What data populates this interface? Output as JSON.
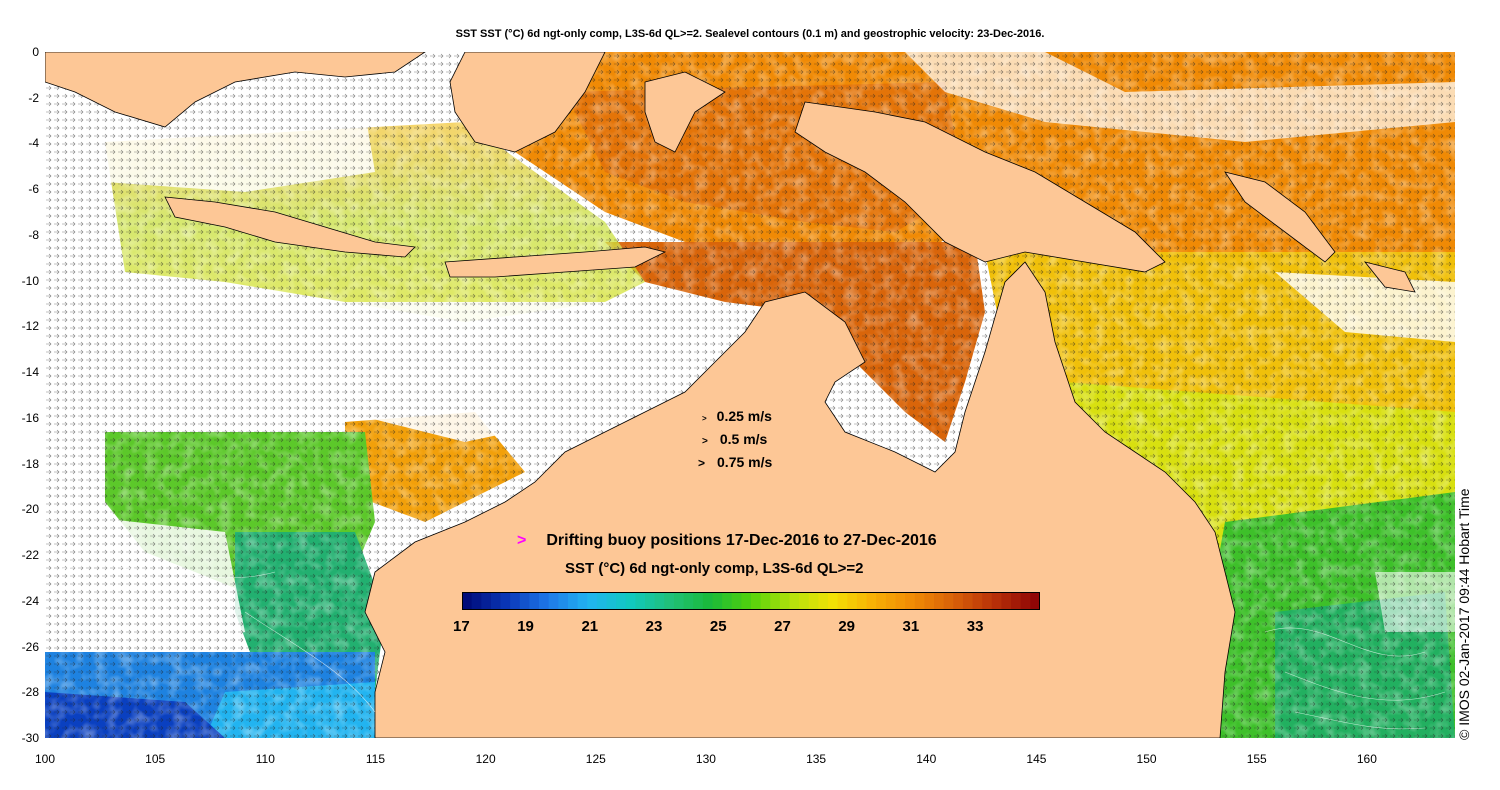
{
  "title": "SST SST (°C) 6d ngt-only comp, L3S-6d QL>=2. Sealevel contours (0.1 m) and geostrophic velocity: 23-Dec-2016.",
  "axes": {
    "lon_range": [
      100,
      164
    ],
    "lat_range": [
      -30,
      0
    ],
    "lon_ticks": [
      "100",
      "105",
      "110",
      "115",
      "120",
      "125",
      "130",
      "135",
      "140",
      "145",
      "150",
      "155",
      "160"
    ],
    "lat_ticks": [
      "0",
      "-2",
      "-4",
      "-6",
      "-8",
      "-10",
      "-12",
      "-14",
      "-16",
      "-18",
      "-20",
      "-22",
      "-24",
      "-26",
      "-28",
      "-30"
    ]
  },
  "velocity_legend": [
    {
      "marker": ">",
      "label": "0.25 m/s"
    },
    {
      "marker": ">",
      "label": "0.5 m/s"
    },
    {
      "marker": ">",
      "label": "0.75 m/s"
    }
  ],
  "buoy": {
    "marker": ">",
    "label": "Drifting buoy positions 17-Dec-2016 to 27-Dec-2016",
    "color": "#ff00ff"
  },
  "colorbar": {
    "title": "SST (°C) 6d ngt-only comp, L3S-6d QL>=2",
    "range": [
      17,
      35
    ],
    "tick_labels": [
      "17",
      "19",
      "21",
      "23",
      "25",
      "27",
      "29",
      "31",
      "33"
    ]
  },
  "copyright": "© IMOS 02-Jan-2017 09:44 Hobart Time",
  "colors": {
    "land": "#fdc796",
    "nodata": "#ffffff",
    "colormap": [
      "#000c7a",
      "#0a37b8",
      "#1e78e8",
      "#22b4f0",
      "#10c8c0",
      "#20c07a",
      "#1aba3a",
      "#52d20c",
      "#b4e20c",
      "#f2e205",
      "#f8b005",
      "#f08a05",
      "#d86008",
      "#b83008",
      "#900606"
    ]
  },
  "chart_data": {
    "type": "heatmap",
    "title": "SST SST (°C) 6d ngt-only comp, L3S-6d QL>=2. Sealevel contours (0.1 m) and geostrophic velocity: 23-Dec-2016.",
    "xlim": [
      100,
      164
    ],
    "ylim": [
      -30,
      0
    ],
    "clim": [
      17,
      35
    ],
    "regions": [
      {
        "lon": [
          100,
          112
        ],
        "lat": [
          -30,
          -26
        ],
        "sst": 20
      },
      {
        "lon": [
          105,
          115
        ],
        "lat": [
          -26,
          -18
        ],
        "sst": 24.5
      },
      {
        "lon": [
          100,
          120
        ],
        "lat": [
          -16,
          -6
        ],
        "sst": 27.5
      },
      {
        "lon": [
          117,
          122
        ],
        "lat": [
          -20,
          -16
        ],
        "sst": 30
      },
      {
        "lon": [
          120,
          143
        ],
        "lat": [
          -12,
          0
        ],
        "sst": 31.5
      },
      {
        "lon": [
          135,
          142
        ],
        "lat": [
          -18,
          -10
        ],
        "sst": 32
      },
      {
        "lon": [
          145,
          164
        ],
        "lat": [
          -8,
          0
        ],
        "sst": 30.5
      },
      {
        "lon": [
          145,
          164
        ],
        "lat": [
          -20,
          -10
        ],
        "sst": 29
      },
      {
        "lon": [
          154,
          164
        ],
        "lat": [
          -30,
          -20
        ],
        "sst": 25.5
      }
    ]
  }
}
